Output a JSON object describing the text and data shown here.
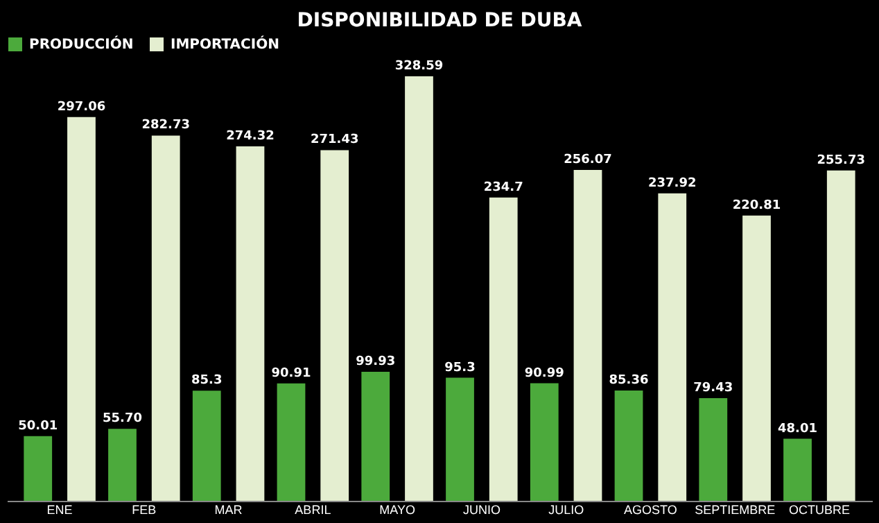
{
  "chart_data": {
    "type": "bar",
    "title": "DISPONIBILIDAD DE DUBA",
    "categories": [
      "ENE",
      "FEB",
      "MAR",
      "ABRIL",
      "MAYO",
      "JUNIO",
      "JULIO",
      "AGOSTO",
      "SEPTIEMBRE",
      "OCTUBRE"
    ],
    "series": [
      {
        "name": "PRODUCCIÓN",
        "color": "#4caa3c",
        "values": [
          50.01,
          55.7,
          85.3,
          90.91,
          99.93,
          95.3,
          90.99,
          85.36,
          79.43,
          48.01
        ],
        "value_labels": [
          "50.01",
          "55.70",
          "85.3",
          "90.91",
          "99.93",
          "95.3",
          "90.99",
          "85.36",
          "79.43",
          "48.01"
        ]
      },
      {
        "name": "IMPORTACIÓN",
        "color": "#e4eed0",
        "values": [
          297.06,
          282.73,
          274.32,
          271.43,
          328.59,
          234.7,
          256.07,
          237.92,
          220.81,
          255.73
        ],
        "value_labels": [
          "297.06",
          "282.73",
          "274.32",
          "271.43",
          "328.59",
          "234.7",
          "256.07",
          "237.92",
          "220.81",
          "255.73"
        ]
      }
    ],
    "legend": "top"
  }
}
